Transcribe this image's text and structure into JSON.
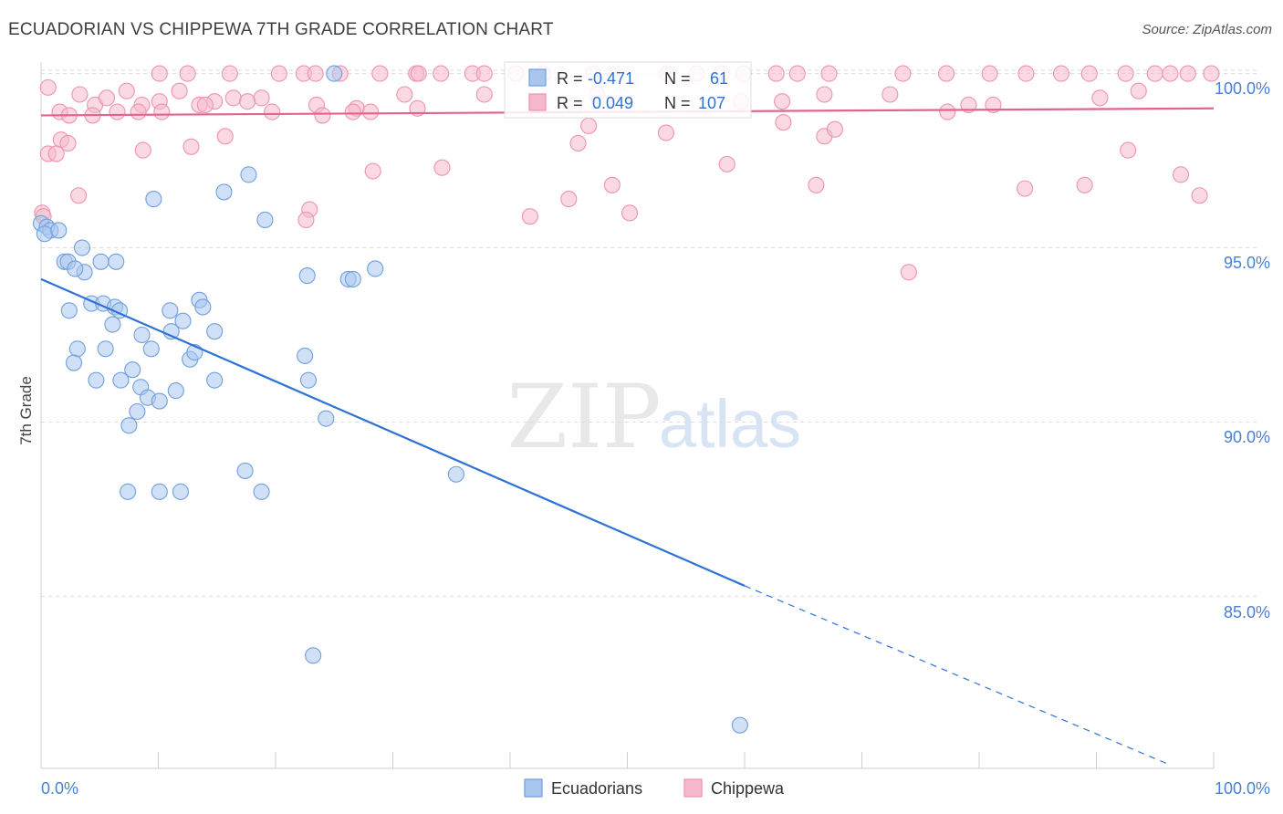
{
  "title": "ECUADORIAN VS CHIPPEWA 7TH GRADE CORRELATION CHART",
  "source": "Source: ZipAtlas.com",
  "watermark": {
    "zip": "ZIP",
    "atlas": "atlas"
  },
  "colors": {
    "ecuadorians_fill": "#a9c6ee",
    "ecuadorians_stroke": "#6f9fde",
    "ecuadorians_line": "#2f72d6",
    "chippewa_fill": "#f6b9cc",
    "chippewa_stroke": "#ee93b0",
    "chippewa_line": "#e0648e",
    "tick_label": "#4a7fd4",
    "grid": "#dcdcdc"
  },
  "legend_top": {
    "rows": [
      {
        "r_label": "R =",
        "r_value": "-0.471",
        "n_label": "N =",
        "n_value": "61"
      },
      {
        "r_label": "R =",
        "r_value": "0.049",
        "n_label": "N =",
        "n_value": "107"
      }
    ]
  },
  "legend_bottom": {
    "items": [
      "Ecuadorians",
      "Chippewa"
    ]
  },
  "chart_data": {
    "type": "scatter",
    "title": "ECUADORIAN VS CHIPPEWA 7TH GRADE CORRELATION CHART",
    "xlabel": "",
    "ylabel": "7th Grade",
    "xlim": [
      0,
      100
    ],
    "ylim": [
      80.5,
      100.5
    ],
    "x_tick_labels": [
      "0.0%",
      "100.0%"
    ],
    "y_ticks": [
      85,
      90,
      95,
      100
    ],
    "y_tick_labels": [
      "85.0%",
      "90.0%",
      "95.0%",
      "100.0%"
    ],
    "grid": true,
    "legend_position": "top-center",
    "series": [
      {
        "name": "Ecuadorians",
        "R": -0.471,
        "N": 61,
        "trend": {
          "x0": 0,
          "y0": 94.1,
          "x1": 60,
          "y1": 85.3,
          "dashed_to_x": 96,
          "dashed_to_y": 80.2
        },
        "points": [
          [
            0,
            95.7
          ],
          [
            0.5,
            95.6
          ],
          [
            0.8,
            95.5
          ],
          [
            0.3,
            95.4
          ],
          [
            1.5,
            95.5
          ],
          [
            3.5,
            95.0
          ],
          [
            2,
            94.6
          ],
          [
            3.7,
            94.3
          ],
          [
            5.1,
            94.6
          ],
          [
            6.4,
            94.6
          ],
          [
            2.3,
            94.6
          ],
          [
            2.9,
            94.4
          ],
          [
            25,
            100
          ],
          [
            9.6,
            96.4
          ],
          [
            15.6,
            96.6
          ],
          [
            17.7,
            97.1
          ],
          [
            19.1,
            95.8
          ],
          [
            22.7,
            94.2
          ],
          [
            26.2,
            94.1
          ],
          [
            26.6,
            94.1
          ],
          [
            28.5,
            94.4
          ],
          [
            4.3,
            93.4
          ],
          [
            5.3,
            93.4
          ],
          [
            6.3,
            93.3
          ],
          [
            6.1,
            92.8
          ],
          [
            6.7,
            93.2
          ],
          [
            2.4,
            93.2
          ],
          [
            11,
            93.2
          ],
          [
            11.1,
            92.6
          ],
          [
            12.1,
            92.9
          ],
          [
            13.5,
            93.5
          ],
          [
            13.8,
            93.3
          ],
          [
            14.8,
            92.6
          ],
          [
            8.6,
            92.5
          ],
          [
            3.1,
            92.1
          ],
          [
            5.5,
            92.1
          ],
          [
            9.4,
            92.1
          ],
          [
            2.8,
            91.7
          ],
          [
            12.7,
            91.8
          ],
          [
            13.1,
            92.0
          ],
          [
            7.8,
            91.5
          ],
          [
            4.7,
            91.2
          ],
          [
            6.8,
            91.2
          ],
          [
            8.5,
            91.0
          ],
          [
            14.8,
            91.2
          ],
          [
            22.5,
            91.9
          ],
          [
            22.8,
            91.2
          ],
          [
            9.1,
            90.7
          ],
          [
            10.1,
            90.6
          ],
          [
            11.5,
            90.9
          ],
          [
            8.2,
            90.3
          ],
          [
            7.5,
            89.9
          ],
          [
            24.3,
            90.1
          ],
          [
            17.4,
            88.6
          ],
          [
            35.4,
            88.5
          ],
          [
            7.4,
            88.0
          ],
          [
            10.1,
            88.0
          ],
          [
            11.9,
            88.0
          ],
          [
            18.8,
            88.0
          ],
          [
            23.2,
            83.3
          ],
          [
            59.6,
            81.3
          ]
        ]
      },
      {
        "name": "Chippewa",
        "R": 0.049,
        "N": 107,
        "trend": {
          "x0": 0,
          "y0": 98.8,
          "x1": 100,
          "y1": 99.0
        },
        "points": [
          [
            10.1,
            100
          ],
          [
            12.5,
            100
          ],
          [
            16.1,
            100
          ],
          [
            20.3,
            100
          ],
          [
            22.4,
            100
          ],
          [
            23.4,
            100
          ],
          [
            25.5,
            100
          ],
          [
            28.9,
            100
          ],
          [
            32.0,
            100
          ],
          [
            34.1,
            100
          ],
          [
            36.8,
            100
          ],
          [
            37.8,
            100
          ],
          [
            40.5,
            100
          ],
          [
            47.1,
            100
          ],
          [
            49.0,
            100
          ],
          [
            53.4,
            100
          ],
          [
            55.9,
            100
          ],
          [
            58.0,
            100
          ],
          [
            59.9,
            100
          ],
          [
            62.7,
            100
          ],
          [
            67.2,
            100
          ],
          [
            73.5,
            100
          ],
          [
            77.2,
            100
          ],
          [
            80.9,
            100
          ],
          [
            84.0,
            100
          ],
          [
            87.0,
            100
          ],
          [
            89.4,
            100
          ],
          [
            92.5,
            100
          ],
          [
            95.0,
            100
          ],
          [
            96.3,
            100
          ],
          [
            97.8,
            100
          ],
          [
            99.8,
            100
          ],
          [
            32.2,
            100
          ],
          [
            42.8,
            100
          ],
          [
            64.5,
            100
          ],
          [
            3.3,
            99.4
          ],
          [
            4.6,
            99.1
          ],
          [
            5.6,
            99.3
          ],
          [
            7.3,
            99.5
          ],
          [
            8.6,
            99.1
          ],
          [
            10.1,
            99.2
          ],
          [
            11.8,
            99.5
          ],
          [
            13.5,
            99.1
          ],
          [
            14.8,
            99.2
          ],
          [
            16.4,
            99.3
          ],
          [
            17.6,
            99.2
          ],
          [
            18.8,
            99.3
          ],
          [
            23.5,
            99.1
          ],
          [
            26.9,
            99.0
          ],
          [
            31.0,
            99.4
          ],
          [
            37.8,
            99.4
          ],
          [
            47.4,
            99.4
          ],
          [
            59.7,
            99.2
          ],
          [
            66.8,
            99.4
          ],
          [
            72.4,
            99.4
          ],
          [
            79.1,
            99.1
          ],
          [
            81.2,
            99.1
          ],
          [
            90.3,
            99.3
          ],
          [
            93.6,
            99.5
          ],
          [
            1.6,
            98.9
          ],
          [
            2.4,
            98.8
          ],
          [
            4.4,
            98.8
          ],
          [
            6.5,
            98.9
          ],
          [
            8.3,
            98.9
          ],
          [
            10.3,
            98.9
          ],
          [
            14.0,
            99.1
          ],
          [
            19.7,
            98.9
          ],
          [
            24.0,
            98.8
          ],
          [
            26.6,
            98.9
          ],
          [
            28.1,
            98.9
          ],
          [
            46.7,
            98.5
          ],
          [
            53.3,
            98.3
          ],
          [
            63.3,
            98.6
          ],
          [
            66.8,
            98.2
          ],
          [
            67.7,
            98.4
          ],
          [
            77.3,
            98.9
          ],
          [
            1.7,
            98.1
          ],
          [
            2.3,
            98.0
          ],
          [
            8.7,
            97.8
          ],
          [
            12.8,
            97.9
          ],
          [
            15.7,
            98.2
          ],
          [
            45.8,
            98.0
          ],
          [
            92.7,
            97.8
          ],
          [
            0.6,
            97.7
          ],
          [
            1.3,
            97.7
          ],
          [
            28.3,
            97.2
          ],
          [
            34.2,
            97.3
          ],
          [
            58.5,
            97.4
          ],
          [
            97.2,
            97.1
          ],
          [
            3.2,
            96.5
          ],
          [
            22.9,
            96.1
          ],
          [
            45.0,
            96.4
          ],
          [
            48.7,
            96.8
          ],
          [
            50.2,
            96.0
          ],
          [
            66.1,
            96.8
          ],
          [
            83.9,
            96.7
          ],
          [
            89.0,
            96.8
          ],
          [
            98.8,
            96.5
          ],
          [
            22.6,
            95.8
          ],
          [
            41.7,
            95.9
          ],
          [
            74.0,
            94.3
          ],
          [
            0.1,
            96.0
          ],
          [
            0.2,
            95.9
          ],
          [
            0.6,
            99.6
          ],
          [
            32.1,
            99.0
          ],
          [
            45.5,
            99.1
          ],
          [
            63.2,
            99.2
          ]
        ]
      }
    ]
  }
}
